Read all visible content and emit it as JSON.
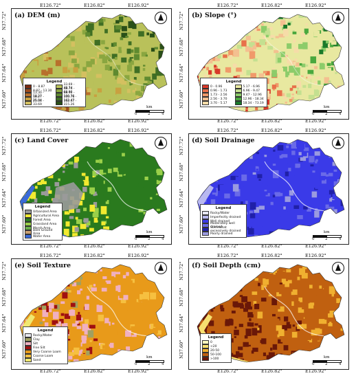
{
  "coords": {
    "top": [
      "E126.72°",
      "E126.82°",
      "E126.92°"
    ],
    "left": [
      "N37.72°",
      "N37.68°",
      "N37.64°",
      "N37.60°"
    ]
  },
  "scale": {
    "unit": "km",
    "ticks": [
      "0",
      "2",
      "4"
    ]
  },
  "panels": [
    {
      "title": "(a) DEM (m)",
      "legend_title": "Legend",
      "items": [
        {
          "label": "0 - 8.87",
          "color": "#7a2a10"
        },
        {
          "label": "8.87 - 13.30",
          "color": "#9b4a1c"
        },
        {
          "label": "13.30 - 18.27",
          "color": "#b8702c"
        },
        {
          "label": "18.27 - 25.04",
          "color": "#c9a040"
        },
        {
          "label": "25.04 - 33.69",
          "color": "#d4c060"
        },
        {
          "label": "33.69 - 48.74",
          "color": "#b9c15a"
        },
        {
          "label": "48.74 - 68.90",
          "color": "#8aa640"
        },
        {
          "label": "68.90 - 100.76",
          "color": "#5f8a30"
        },
        {
          "label": "100.76 - 162.47",
          "color": "#3f6e24"
        },
        {
          "label": "162.47 - 315.26",
          "color": "#2a5018"
        }
      ]
    },
    {
      "title": "(b) Slope (°)",
      "legend_title": "Legend",
      "items": [
        {
          "label": "0 - 0.96",
          "color": "#d83a2a"
        },
        {
          "label": "0.96 - 1.73",
          "color": "#e8704a"
        },
        {
          "label": "1.73 - 2.56",
          "color": "#f09a6a"
        },
        {
          "label": "2.56 - 3.70",
          "color": "#f4c090"
        },
        {
          "label": "3.70 - 5.17",
          "color": "#f6dca8"
        },
        {
          "label": "5.17 - 6.96",
          "color": "#e8e8a0"
        },
        {
          "label": "6.96 - 9.47",
          "color": "#c4e090"
        },
        {
          "label": "9.47 - 12.96",
          "color": "#8ccc6a"
        },
        {
          "label": "12.96 - 18.34",
          "color": "#4aa83e"
        },
        {
          "label": "18.34 - 73.19",
          "color": "#1a7a2a"
        }
      ]
    },
    {
      "title": "(c) Land Cover",
      "legend_title": "Legend",
      "items": [
        {
          "label": "Urbanized Area",
          "color": "#9a9a9a"
        },
        {
          "label": "Agricultural Area",
          "color": "#f2ea30"
        },
        {
          "label": "Forest Area",
          "color": "#2a7a1e"
        },
        {
          "label": "Grassland Area",
          "color": "#9ad04a"
        },
        {
          "label": "Marsh Area",
          "color": "#6ab04a"
        },
        {
          "label": "Bare Ground Area",
          "color": "#caa070"
        },
        {
          "label": "Water Area",
          "color": "#3a6ad8"
        }
      ]
    },
    {
      "title": "(d) Soil Drainage",
      "legend_title": "Legend",
      "items": [
        {
          "label": "Rocky/Water",
          "color": "#e8e8f4"
        },
        {
          "label": "Imperfectly drained",
          "color": "#b8b8f0"
        },
        {
          "label": "Well drained",
          "color": "#3a3ae8"
        },
        {
          "label": "Moderately well drained",
          "color": "#6a6ae8"
        },
        {
          "label": "Somewhat excessively drained",
          "color": "#2020a8"
        },
        {
          "label": "Poorly drained",
          "color": "#9a9ae0"
        }
      ]
    },
    {
      "title": "(e) Soil Texture",
      "legend_title": "Legend",
      "items": [
        {
          "label": "Rocky/Water",
          "color": "#e8e8f0"
        },
        {
          "label": "Clay",
          "color": "#a0a060"
        },
        {
          "label": "Silt",
          "color": "#f0b0c0"
        },
        {
          "label": "Fine Silt",
          "color": "#a01010"
        },
        {
          "label": "Very Coarse Loam",
          "color": "#e89a1a"
        },
        {
          "label": "Coarse Loam",
          "color": "#f6c040"
        },
        {
          "label": "Sand",
          "color": "#f0e870"
        }
      ]
    },
    {
      "title": "(f) Soil Depth (cm)",
      "legend_title": "Legend",
      "items": [
        {
          "label": "0",
          "color": "#ffffc0"
        },
        {
          "label": "<20",
          "color": "#f6e070"
        },
        {
          "label": "20-50",
          "color": "#f0b030"
        },
        {
          "label": "50-100",
          "color": "#c06010"
        },
        {
          "label": ">100",
          "color": "#6a1808"
        }
      ]
    }
  ]
}
